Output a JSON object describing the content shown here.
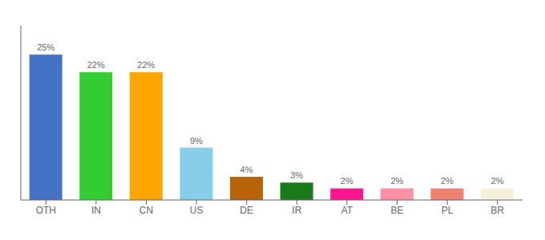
{
  "chart_data": {
    "type": "bar",
    "categories": [
      "OTH",
      "IN",
      "CN",
      "US",
      "DE",
      "IR",
      "AT",
      "BE",
      "PL",
      "BR"
    ],
    "values": [
      25,
      22,
      22,
      9,
      4,
      3,
      2,
      2,
      2,
      2
    ],
    "value_labels": [
      "25%",
      "22%",
      "22%",
      "9%",
      "4%",
      "3%",
      "2%",
      "2%",
      "2%",
      "2%"
    ],
    "colors": [
      "#4472c4",
      "#33cc33",
      "#ffa500",
      "#87ceeb",
      "#b8620a",
      "#1a7a1a",
      "#ff1493",
      "#ff8fa3",
      "#f08070",
      "#f5f0dc"
    ],
    "ylim": [
      0,
      30
    ],
    "grid": false,
    "data_labels": true,
    "tick_labels": "x"
  }
}
